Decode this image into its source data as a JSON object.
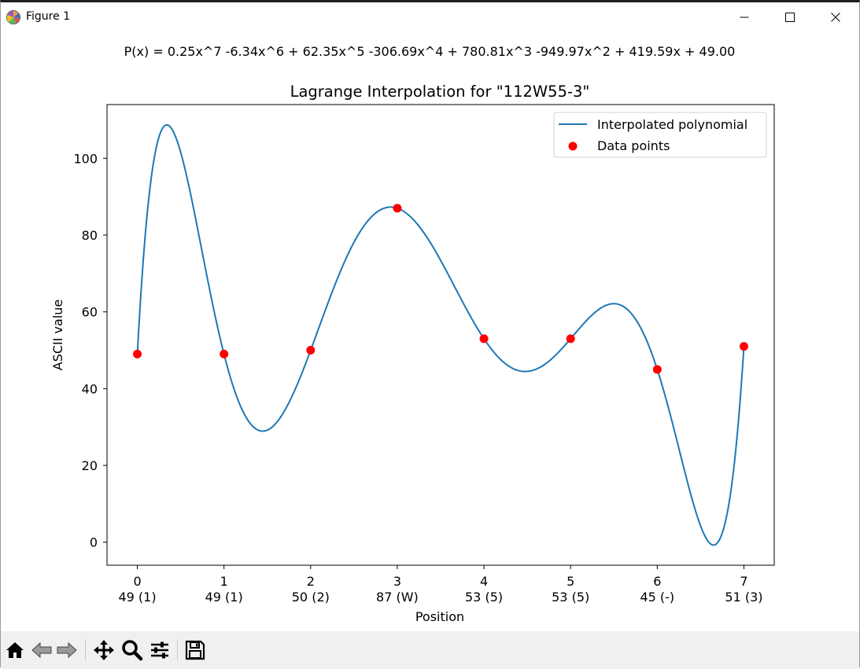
{
  "window": {
    "title": "Figure 1"
  },
  "figure": {
    "equation": "P(x) = 0.25x^7 -6.34x^6 + 62.35x^5 -306.69x^4 + 780.81x^3 -949.97x^2 + 419.59x + 49.00"
  },
  "chart_data": {
    "type": "line",
    "title": "Lagrange Interpolation for \"112W55-3\"",
    "xlabel": "Position",
    "ylabel": "ASCII value",
    "xlim": [
      -0.35,
      7.35
    ],
    "ylim": [
      -6,
      114
    ],
    "x_ticks": [
      0,
      1,
      2,
      3,
      4,
      5,
      6,
      7
    ],
    "x_tick_labels": [
      "0\n49 (1)",
      "1\n49 (1)",
      "2\n50 (2)",
      "3\n87 (W)",
      "4\n53 (5)",
      "5\n53 (5)",
      "6\n45 (-)",
      "7\n51 (3)"
    ],
    "y_ticks": [
      0,
      20,
      40,
      60,
      80,
      100
    ],
    "grid": false,
    "legend_position": "upper right",
    "series": [
      {
        "name": "Interpolated polynomial",
        "kind": "line",
        "color": "#1f77b4",
        "x": [
          0,
          1,
          2,
          3,
          4,
          5,
          6,
          7
        ],
        "y": [
          49,
          49,
          50,
          87,
          53,
          53,
          45,
          51
        ]
      },
      {
        "name": "Data points",
        "kind": "scatter",
        "color": "#ff0000",
        "x": [
          0,
          1,
          2,
          3,
          4,
          5,
          6,
          7
        ],
        "y": [
          49,
          49,
          50,
          87,
          53,
          53,
          45,
          51
        ]
      }
    ]
  },
  "toolbar": {
    "icons": [
      "home-icon",
      "back-icon",
      "forward-icon",
      "pan-icon",
      "zoom-icon",
      "configure-subplots-icon",
      "save-icon"
    ]
  }
}
